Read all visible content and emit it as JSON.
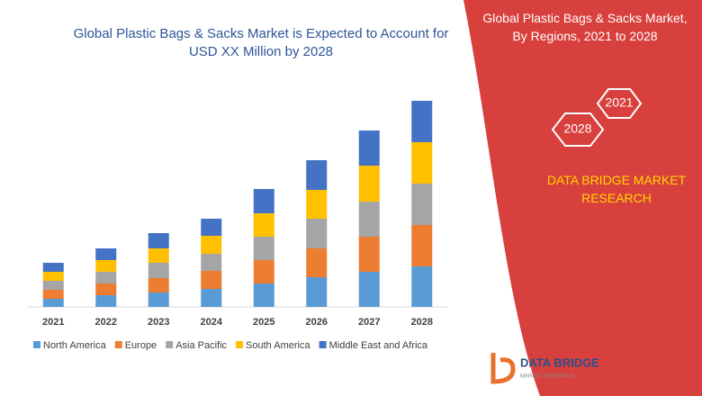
{
  "chart_data": {
    "type": "stacked-bar",
    "title": "Global Plastic Bags & Sacks Market is Expected to Account for USD XX Million by 2028",
    "categories": [
      "2021",
      "2022",
      "2023",
      "2024",
      "2025",
      "2026",
      "2027",
      "2028"
    ],
    "series": [
      {
        "name": "North America",
        "color": "#5b9bd5",
        "values": [
          9,
          13,
          16,
          20,
          26,
          33,
          39,
          45
        ]
      },
      {
        "name": "Europe",
        "color": "#ed7d31",
        "values": [
          10,
          13,
          16,
          20,
          26,
          32,
          39,
          46
        ]
      },
      {
        "name": "Asia Pacific",
        "color": "#a5a5a5",
        "values": [
          10,
          13,
          17,
          19,
          26,
          33,
          39,
          46
        ]
      },
      {
        "name": "South America",
        "color": "#ffc000",
        "values": [
          10,
          13,
          16,
          20,
          26,
          32,
          40,
          46
        ]
      },
      {
        "name": "Middle East and Africa",
        "color": "#4472c4",
        "values": [
          10,
          13,
          17,
          19,
          27,
          33,
          39,
          46
        ]
      }
    ],
    "legend": "bottom"
  },
  "panel": {
    "title": "Global Plastic Bags & Sacks Market, By Regions, 2021 to 2028",
    "year_a": "2021",
    "year_b": "2028",
    "brand": "DATA BRIDGE MARKET RESEARCH",
    "logo": "DATA BRIDGE",
    "logo_sub": "MARKET RESEARCH"
  }
}
